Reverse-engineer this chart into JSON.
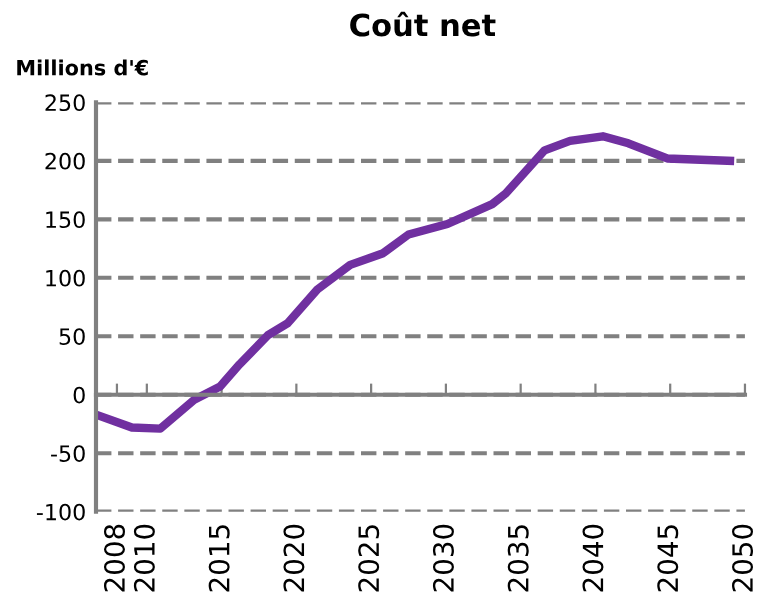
{
  "chart_data": {
    "type": "line",
    "title": "Coût net",
    "ylabel": "Millions d'€",
    "x": [
      2006.6,
      2009.0,
      2010.9,
      2013.2,
      2014.9,
      2016.2,
      2018.1,
      2019.4,
      2021.4,
      2023.6,
      2025.8,
      2027.5,
      2030.1,
      2033.1,
      2034.0,
      2036.6,
      2038.3,
      2040.5,
      2042.2,
      2044.8,
      2049.0
    ],
    "series": [
      {
        "color": "#7030a0",
        "values": [
          -17,
          -28,
          -29,
          -4,
          7,
          26,
          51,
          61,
          90,
          111,
          121,
          137,
          146,
          163,
          172,
          209,
          217,
          221,
          215,
          202,
          200
        ]
      }
    ],
    "xlim": [
      2006.6,
      2050
    ],
    "xticks": [
      2008,
      2010,
      2015,
      2020,
      2025,
      2030,
      2035,
      2040,
      2045,
      2050
    ],
    "ylim": [
      -100,
      250
    ],
    "yticks": [
      -100,
      -50,
      0,
      50,
      100,
      150,
      200,
      250
    ],
    "grid": "y",
    "legend": false,
    "marker": "none",
    "line_style": "solid"
  }
}
